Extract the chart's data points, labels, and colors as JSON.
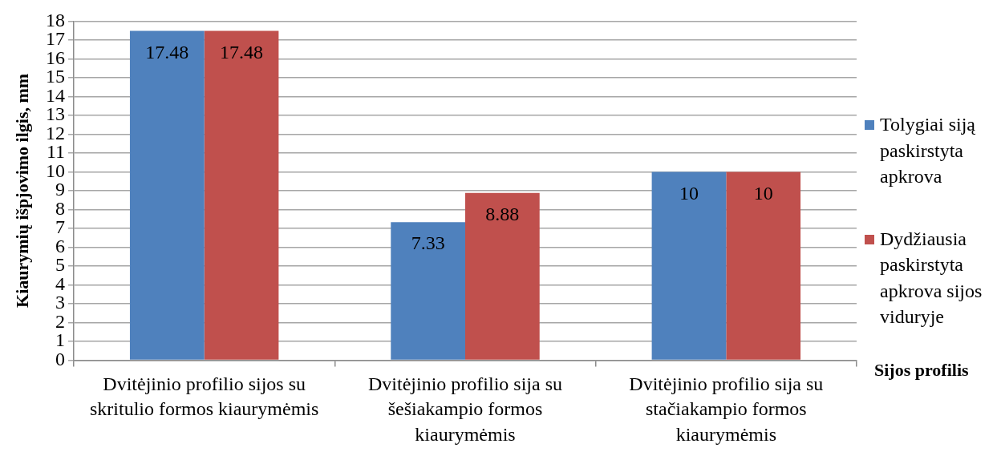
{
  "chart_data": {
    "type": "bar",
    "categories": [
      "Dvitėjinio profilio sijos su skritulio formos kiaurymėmis",
      "Dvitėjinio profilio sija su šešiakampio formos kiaurymėmis",
      "Dvitėjinio profilio sija su stačiakampio formos kiaurymėmis"
    ],
    "series": [
      {
        "name": "Tolygiai siją paskirstyta apkrova",
        "color": "#4f81bd",
        "values": [
          17.48,
          7.33,
          10
        ]
      },
      {
        "name": "Dydžiausia paskirstyta apkrova sijos viduryje",
        "color": "#c0504d",
        "values": [
          17.48,
          8.88,
          10
        ]
      }
    ],
    "xlabel": "Sijos profilis",
    "ylabel": "Kiaurymių išpjovimo ilgis, mm",
    "ylim": [
      0,
      18
    ],
    "yticks": [
      0,
      1,
      2,
      3,
      4,
      5,
      6,
      7,
      8,
      9,
      10,
      11,
      12,
      13,
      14,
      15,
      16,
      17,
      18
    ],
    "grid": "y",
    "legend": "right",
    "data_labels": true
  }
}
